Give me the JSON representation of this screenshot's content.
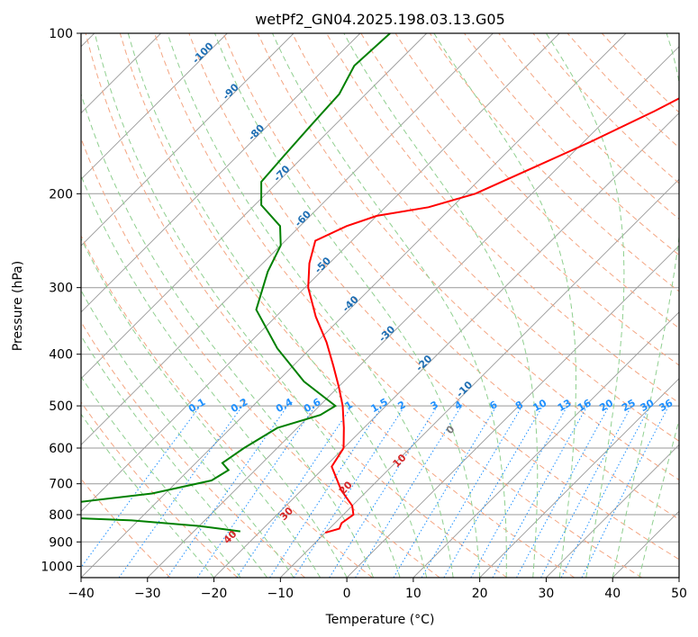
{
  "chart_data": {
    "type": "line",
    "title": "wetPf2_GN04.2025.198.03.13.G05",
    "xlabel": "Temperature (°C)",
    "ylabel": "Pressure (hPa)",
    "xlim": [
      -40,
      50
    ],
    "ylim": [
      1050,
      100
    ],
    "y_scale": "log",
    "grid": true,
    "x_ticks": [
      "−40",
      "−30",
      "−20",
      "−10",
      "0",
      "10",
      "20",
      "30",
      "40",
      "50"
    ],
    "y_ticks": [
      "100",
      "200",
      "300",
      "400",
      "500",
      "600",
      "700",
      "800",
      "900",
      "1000"
    ],
    "series": [
      {
        "color": "#ff0000",
        "points": [
          [
            -15.9,
            100
          ],
          [
            -19,
            120
          ],
          [
            -24,
            140
          ],
          [
            -29,
            160
          ],
          [
            -34,
            180
          ],
          [
            -38.5,
            200
          ],
          [
            -43.5,
            212
          ],
          [
            -50,
            220
          ],
          [
            -53,
            230
          ],
          [
            -55.5,
            245
          ],
          [
            -53,
            270
          ],
          [
            -49.5,
            300
          ],
          [
            -44,
            340
          ],
          [
            -38.5,
            380
          ],
          [
            -34,
            420
          ],
          [
            -30,
            460
          ],
          [
            -26.5,
            500
          ],
          [
            -23,
            550
          ],
          [
            -20,
            600
          ],
          [
            -19,
            650
          ],
          [
            -14,
            720
          ],
          [
            -10,
            770
          ],
          [
            -8.5,
            800
          ],
          [
            -9,
            830
          ],
          [
            -8.5,
            850
          ],
          [
            -10,
            865
          ]
        ]
      },
      {
        "color": "#008000",
        "points": [
          [
            -75.5,
            100
          ],
          [
            -76,
            115
          ],
          [
            -74,
            130
          ],
          [
            -73.5,
            150
          ],
          [
            -73,
            170
          ],
          [
            -72.5,
            190
          ],
          [
            -69,
            210
          ],
          [
            -63,
            230
          ],
          [
            -60,
            250
          ],
          [
            -58,
            280
          ],
          [
            -54,
            330
          ],
          [
            -45,
            390
          ],
          [
            -36,
            450
          ],
          [
            -27.6,
            500
          ],
          [
            -28.5,
            520
          ],
          [
            -33,
            550
          ],
          [
            -35,
            600
          ],
          [
            -36,
            640
          ],
          [
            -34,
            660
          ],
          [
            -35,
            690
          ],
          [
            -42,
            730
          ],
          [
            -56,
            770
          ],
          [
            -66,
            790
          ],
          [
            -63,
            800
          ],
          [
            -41,
            820
          ],
          [
            -30,
            840
          ],
          [
            -23,
            860
          ]
        ]
      }
    ],
    "dry_adiabat_labels": [
      "-100",
      "-90",
      "-80",
      "-70",
      "-60",
      "-50",
      "-40",
      "-30",
      "-20",
      "-10"
    ],
    "moist_adiabat_labels": [
      "0",
      "10",
      "20",
      "30",
      "40"
    ],
    "mixing_ratio_labels": [
      "0.1",
      "0.2",
      "0.4",
      "0.6",
      "1",
      "1.5",
      "2",
      "3",
      "4",
      "6",
      "8",
      "10",
      "13",
      "16",
      "20",
      "25",
      "30",
      "36"
    ]
  },
  "colors": {
    "temperature": "#ff0000",
    "dewpoint": "#008000",
    "isotherm": "#999999",
    "dry_adiabat": "#f4a582",
    "moist_adiabat": "#8fcf8f",
    "mixing_ratio": "#1e90ff",
    "dry_adiabat_label": "#1f6fb4",
    "moist_adiabat_label": "#d62728"
  }
}
